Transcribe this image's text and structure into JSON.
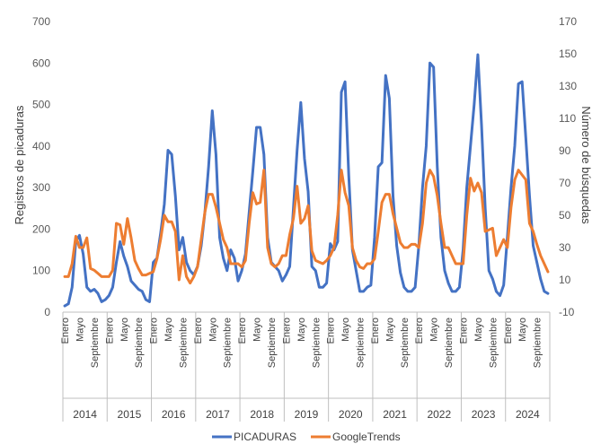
{
  "chart_data": {
    "type": "line",
    "ylabel": "Registros de picaduras",
    "y2label": "Número de búsquedas",
    "ylim": [
      0,
      700
    ],
    "y2lim": [
      -10,
      170
    ],
    "yticks": [
      0,
      100,
      200,
      300,
      400,
      500,
      600,
      700
    ],
    "y2ticks": [
      -10,
      10,
      30,
      50,
      70,
      90,
      110,
      130,
      150,
      170
    ],
    "years": [
      "2014",
      "2015",
      "2016",
      "2017",
      "2018",
      "2019",
      "2020",
      "2021",
      "2022",
      "2023",
      "2024"
    ],
    "month_labels": [
      "Enero",
      "Mayo",
      "Septiembre"
    ],
    "grid": false,
    "legend_position": "bottom",
    "series": [
      {
        "name": "PICADURAS",
        "axis": "left",
        "color": "#4472C4",
        "values": [
          15,
          20,
          60,
          170,
          185,
          140,
          60,
          50,
          55,
          45,
          25,
          30,
          40,
          60,
          120,
          170,
          135,
          110,
          75,
          65,
          55,
          50,
          30,
          25,
          120,
          130,
          190,
          260,
          390,
          380,
          280,
          150,
          180,
          120,
          100,
          90,
          110,
          160,
          240,
          350,
          485,
          380,
          180,
          130,
          100,
          150,
          130,
          75,
          100,
          140,
          240,
          340,
          445,
          445,
          380,
          180,
          120,
          110,
          100,
          75,
          90,
          110,
          250,
          390,
          505,
          370,
          290,
          110,
          100,
          60,
          60,
          70,
          165,
          150,
          170,
          530,
          555,
          330,
          150,
          100,
          50,
          50,
          60,
          65,
          180,
          350,
          360,
          570,
          515,
          280,
          160,
          95,
          60,
          50,
          50,
          60,
          160,
          300,
          400,
          600,
          590,
          350,
          180,
          100,
          70,
          50,
          50,
          60,
          150,
          300,
          400,
          500,
          620,
          450,
          250,
          100,
          80,
          50,
          40,
          65,
          180,
          300,
          400,
          550,
          555,
          420,
          280,
          160,
          120,
          80,
          50,
          45
        ]
      },
      {
        "name": "GoogleTrends",
        "axis": "right",
        "color": "#ED7D31",
        "values": [
          12,
          12,
          20,
          37,
          30,
          30,
          36,
          17,
          16,
          14,
          12,
          12,
          12,
          16,
          45,
          44,
          32,
          48,
          36,
          22,
          17,
          13,
          13,
          14,
          15,
          23,
          35,
          50,
          46,
          46,
          40,
          10,
          25,
          12,
          8,
          12,
          18,
          35,
          52,
          63,
          63,
          55,
          45,
          35,
          30,
          20,
          20,
          20,
          18,
          22,
          45,
          64,
          57,
          58,
          78,
          30,
          20,
          18,
          20,
          25,
          25,
          38,
          48,
          68,
          45,
          48,
          56,
          28,
          22,
          21,
          20,
          22,
          25,
          30,
          50,
          78,
          64,
          56,
          30,
          22,
          18,
          17,
          20,
          20,
          23,
          40,
          58,
          63,
          63,
          51,
          42,
          33,
          30,
          30,
          32,
          32,
          30,
          45,
          70,
          78,
          74,
          62,
          45,
          30,
          30,
          25,
          20,
          20,
          20,
          50,
          73,
          65,
          70,
          64,
          40,
          41,
          42,
          25,
          30,
          35,
          30,
          55,
          72,
          78,
          75,
          72,
          45,
          40,
          32,
          25,
          20,
          15
        ]
      }
    ]
  }
}
